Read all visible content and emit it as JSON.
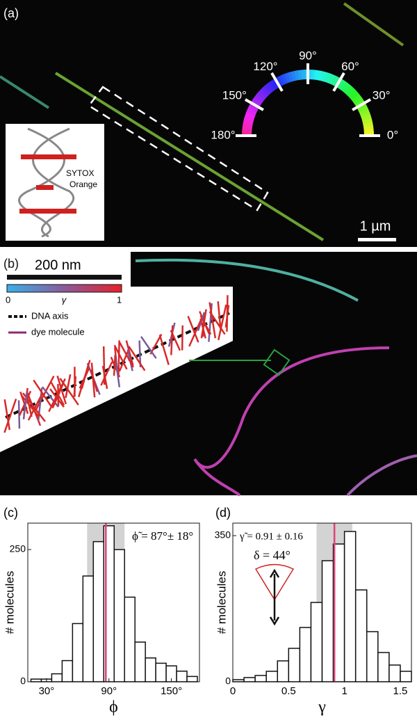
{
  "panels": {
    "a": {
      "label": "(a)",
      "scale_bar": "1 µm",
      "inset_text": "SYTOX Orange",
      "angle_labels": [
        "0°",
        "30°",
        "60°",
        "90°",
        "120°",
        "150°",
        "180°"
      ]
    },
    "b": {
      "label": "(b)",
      "scale_bar": "200 nm",
      "colorbar_min": "0",
      "colorbar_symbol": "γ",
      "colorbar_max": "1",
      "legend": [
        "DNA axis",
        "dye molecule"
      ]
    }
  },
  "chart_data": [
    {
      "type": "histogram",
      "panel_label": "(c)",
      "x_label": "ϕ",
      "y_label": "# molecules",
      "annotation": "ϕ̃ = 87°± 18°",
      "bins": [
        15,
        25,
        35,
        45,
        55,
        65,
        75,
        85,
        95,
        105,
        115,
        125,
        135,
        145,
        155,
        165,
        175
      ],
      "values": [
        5,
        5,
        15,
        40,
        110,
        200,
        265,
        295,
        250,
        160,
        75,
        45,
        35,
        30,
        20,
        10
      ],
      "mean": 87,
      "sd": 18,
      "xlim": [
        12,
        177
      ],
      "ylim": [
        0,
        300
      ],
      "xticks": [
        {
          "value": 30,
          "label": "30°"
        },
        {
          "value": 90,
          "label": "90°"
        },
        {
          "value": 150,
          "label": "150°"
        }
      ],
      "yticks": [
        0,
        250
      ],
      "color": "#ffffff",
      "mean_color": "#e0407a",
      "band_color": "#d3d3d3"
    },
    {
      "type": "histogram",
      "panel_label": "(d)",
      "x_label": "γ",
      "y_label": "# molecules",
      "annotation": "γ̃ = 0.91 ± 0.16",
      "annotation2": "δ = 44°",
      "bins": [
        0,
        0.1,
        0.2,
        0.3,
        0.4,
        0.5,
        0.6,
        0.7,
        0.8,
        0.9,
        1.0,
        1.1,
        1.2,
        1.3,
        1.4,
        1.5,
        1.6
      ],
      "values": [
        5,
        10,
        15,
        25,
        50,
        80,
        130,
        190,
        290,
        330,
        360,
        220,
        120,
        70,
        40,
        25
      ],
      "mean": 0.91,
      "sd": 0.16,
      "xlim": [
        0,
        1.6
      ],
      "ylim": [
        0,
        380
      ],
      "xticks": [
        0,
        0.5,
        1,
        1.5
      ],
      "yticks": [
        0,
        350
      ],
      "color": "#ffffff",
      "mean_color": "#e0407a",
      "band_color": "#d3d3d3"
    }
  ]
}
